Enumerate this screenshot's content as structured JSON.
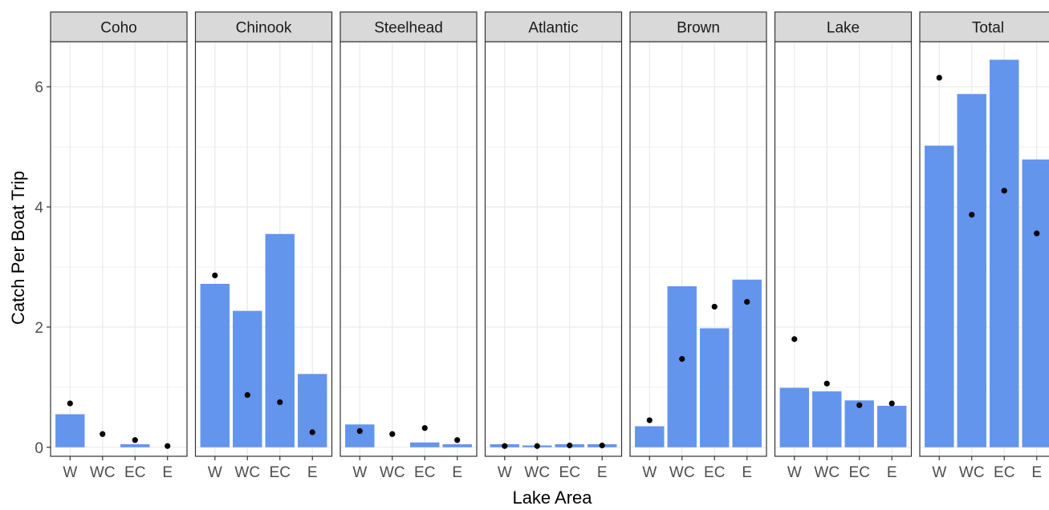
{
  "chart_data": {
    "type": "bar",
    "xlabel": "Lake Area",
    "ylabel": "Catch Per Boat Trip",
    "categories": [
      "W",
      "WC",
      "EC",
      "E"
    ],
    "ylim": [
      -0.15,
      6.75
    ],
    "yticks": [
      0,
      2,
      4,
      6
    ],
    "grid": true,
    "facets": [
      {
        "name": "Coho",
        "bars": [
          0.55,
          0.0,
          0.05,
          0.0
        ],
        "points": [
          0.73,
          0.22,
          0.12,
          0.02
        ]
      },
      {
        "name": "Chinook",
        "bars": [
          2.72,
          2.27,
          3.55,
          1.22
        ],
        "points": [
          2.86,
          0.87,
          0.75,
          0.25
        ]
      },
      {
        "name": "Steelhead",
        "bars": [
          0.38,
          0.0,
          0.08,
          0.05
        ],
        "points": [
          0.27,
          0.22,
          0.32,
          0.12
        ]
      },
      {
        "name": "Atlantic",
        "bars": [
          0.05,
          0.03,
          0.05,
          0.05
        ],
        "points": [
          0.02,
          0.02,
          0.03,
          0.03
        ]
      },
      {
        "name": "Brown",
        "bars": [
          0.35,
          2.68,
          1.98,
          2.79
        ],
        "points": [
          0.45,
          1.47,
          2.34,
          2.42
        ]
      },
      {
        "name": "Lake",
        "bars": [
          0.99,
          0.93,
          0.78,
          0.69
        ],
        "points": [
          1.8,
          1.06,
          0.7,
          0.73
        ]
      },
      {
        "name": "Total",
        "bars": [
          5.02,
          5.88,
          6.45,
          4.79
        ],
        "points": [
          6.15,
          3.87,
          4.27,
          3.56
        ]
      }
    ],
    "colors": {
      "bar": "#6495ED",
      "point": "#000000",
      "strip": "#D9D9D9",
      "grid": "#EBEBEB",
      "border": "#333333"
    }
  }
}
